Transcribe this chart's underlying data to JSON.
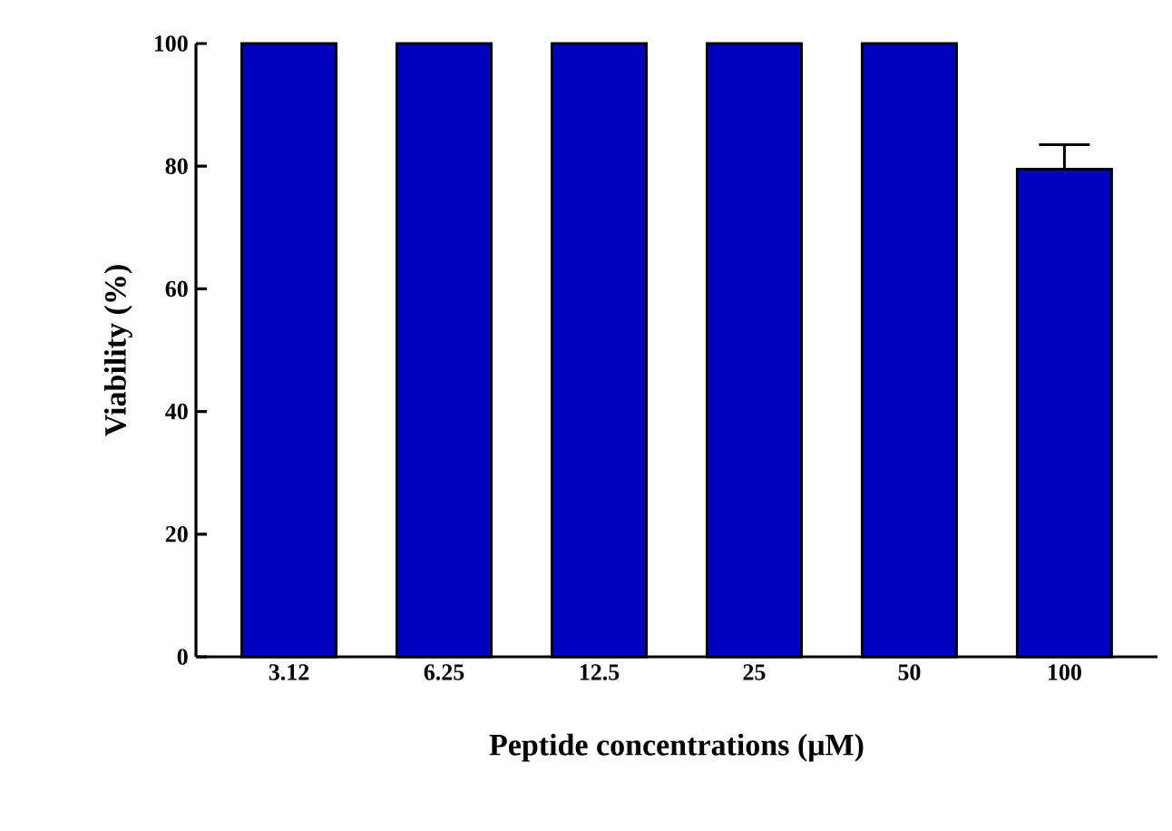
{
  "chart_data": {
    "type": "bar",
    "xlabel": "Peptide concentrations (μM)",
    "ylabel": "Viability (%)",
    "categories": [
      "3.12",
      "6.25",
      "12.5",
      "25",
      "50",
      "100"
    ],
    "values": [
      100,
      100,
      100,
      100,
      100,
      79.5
    ],
    "errors": [
      null,
      null,
      null,
      null,
      null,
      [
        79.5,
        83.5
      ]
    ],
    "color": "#0000bf",
    "ylim": [
      0,
      100
    ],
    "yticks": [
      0,
      20,
      40,
      60,
      80,
      100
    ]
  }
}
